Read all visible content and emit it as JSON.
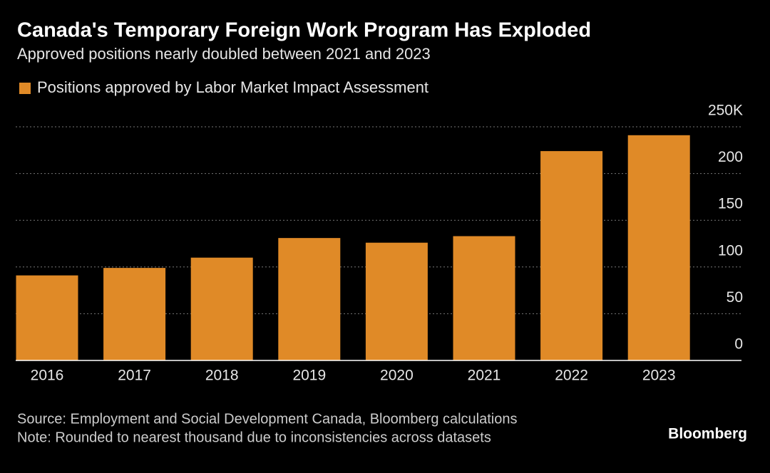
{
  "chart_data": {
    "type": "bar",
    "title": "Canada's Temporary Foreign Work Program Has Exploded",
    "subtitle": "Approved positions nearly doubled between 2021 and 2023",
    "series": [
      {
        "name": "Positions approved by Labor Market Impact Assessment",
        "color": "#e08a27",
        "values": [
          91,
          99,
          110,
          131,
          126,
          133,
          224,
          241
        ]
      }
    ],
    "categories": [
      "2016",
      "2017",
      "2018",
      "2019",
      "2020",
      "2021",
      "2022",
      "2023"
    ],
    "ylim": [
      0,
      250
    ],
    "yticks": [
      0,
      50,
      100,
      150,
      200,
      {
        "value": 250,
        "label": "250K"
      }
    ],
    "grid": true,
    "legend": "top-left",
    "source": "Source: Employment and Social Development Canada, Bloomberg calculations",
    "note": "Note: Rounded to nearest thousand due to inconsistencies across datasets",
    "brand": "Bloomberg"
  }
}
